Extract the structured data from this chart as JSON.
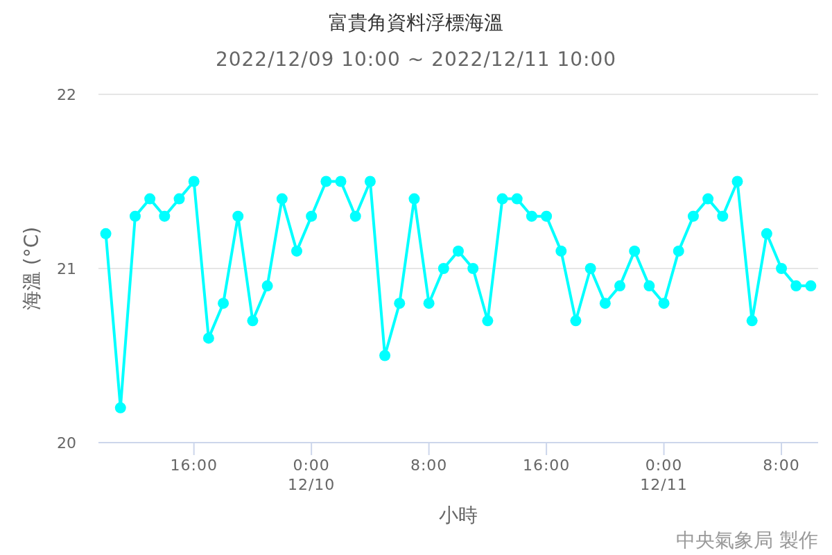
{
  "chart_data": {
    "type": "line",
    "title": "富貴角資料浮標海溫",
    "subtitle": "2022/12/09 10:00 ~ 2022/12/11 10:00",
    "xlabel": "小時",
    "ylabel": "海溫 (°C)",
    "annotations": [
      "中央氣象局 製作"
    ],
    "x": [
      "2022-12-09T10:00",
      "2022-12-09T11:00",
      "2022-12-09T12:00",
      "2022-12-09T13:00",
      "2022-12-09T14:00",
      "2022-12-09T15:00",
      "2022-12-09T16:00",
      "2022-12-09T17:00",
      "2022-12-09T18:00",
      "2022-12-09T19:00",
      "2022-12-09T20:00",
      "2022-12-09T21:00",
      "2022-12-09T22:00",
      "2022-12-09T23:00",
      "2022-12-10T00:00",
      "2022-12-10T01:00",
      "2022-12-10T02:00",
      "2022-12-10T03:00",
      "2022-12-10T04:00",
      "2022-12-10T05:00",
      "2022-12-10T06:00",
      "2022-12-10T07:00",
      "2022-12-10T08:00",
      "2022-12-10T09:00",
      "2022-12-10T10:00",
      "2022-12-10T11:00",
      "2022-12-10T12:00",
      "2022-12-10T13:00",
      "2022-12-10T14:00",
      "2022-12-10T15:00",
      "2022-12-10T16:00",
      "2022-12-10T17:00",
      "2022-12-10T18:00",
      "2022-12-10T19:00",
      "2022-12-10T20:00",
      "2022-12-10T21:00",
      "2022-12-10T22:00",
      "2022-12-10T23:00",
      "2022-12-11T00:00",
      "2022-12-11T01:00",
      "2022-12-11T02:00",
      "2022-12-11T03:00",
      "2022-12-11T04:00",
      "2022-12-11T05:00",
      "2022-12-11T06:00",
      "2022-12-11T07:00",
      "2022-12-11T08:00",
      "2022-12-11T09:00",
      "2022-12-11T10:00"
    ],
    "series": [
      {
        "color": "#00ffff",
        "values": [
          21.2,
          20.2,
          21.3,
          21.4,
          21.3,
          21.4,
          21.5,
          20.6,
          20.8,
          21.3,
          20.7,
          20.9,
          21.4,
          21.1,
          21.3,
          21.5,
          21.5,
          21.3,
          21.5,
          20.5,
          20.8,
          21.4,
          20.8,
          21.0,
          21.1,
          21.0,
          20.7,
          21.4,
          21.4,
          21.3,
          21.3,
          21.1,
          20.7,
          21.0,
          20.8,
          20.9,
          21.1,
          20.9,
          20.8,
          21.1,
          21.3,
          21.4,
          21.3,
          21.5,
          20.7,
          21.2,
          21.0,
          20.9,
          20.9
        ]
      }
    ],
    "xlim": [
      "2022-12-09T09:30",
      "2022-12-11T10:30"
    ],
    "xticks": [
      {
        "value": "2022-12-09T16:00",
        "label": "16:00"
      },
      {
        "value": "2022-12-10T00:00",
        "label": "0:00\n12/10"
      },
      {
        "value": "2022-12-10T08:00",
        "label": "8:00"
      },
      {
        "value": "2022-12-10T16:00",
        "label": "16:00"
      },
      {
        "value": "2022-12-11T00:00",
        "label": "0:00\n12/11"
      },
      {
        "value": "2022-12-11T08:00",
        "label": "8:00"
      }
    ],
    "ylim": [
      20,
      22
    ],
    "yticks": [
      20,
      21,
      22
    ],
    "grid": "y",
    "marker": "circle",
    "line_style": "solid"
  }
}
